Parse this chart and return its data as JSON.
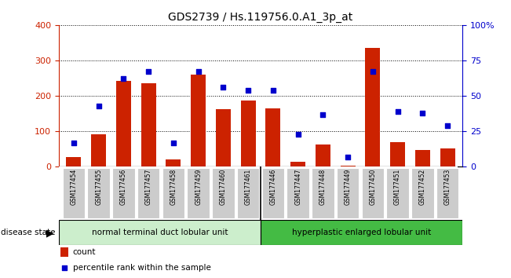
{
  "title": "GDS2739 / Hs.119756.0.A1_3p_at",
  "samples": [
    "GSM177454",
    "GSM177455",
    "GSM177456",
    "GSM177457",
    "GSM177458",
    "GSM177459",
    "GSM177460",
    "GSM177461",
    "GSM177446",
    "GSM177447",
    "GSM177448",
    "GSM177449",
    "GSM177450",
    "GSM177451",
    "GSM177452",
    "GSM177453"
  ],
  "counts": [
    28,
    92,
    242,
    235,
    20,
    260,
    163,
    187,
    165,
    15,
    62,
    3,
    335,
    70,
    48,
    52
  ],
  "percentiles": [
    17,
    43,
    62,
    67,
    17,
    67,
    56,
    54,
    54,
    23,
    37,
    7,
    67,
    39,
    38,
    29
  ],
  "group1_label": "normal terminal duct lobular unit",
  "group2_label": "hyperplastic enlarged lobular unit",
  "bar_color": "#cc2200",
  "dot_color": "#0000cc",
  "group1_bg": "#cceecc",
  "group2_bg": "#44bb44",
  "tick_bg": "#cccccc",
  "ylim_left": [
    0,
    400
  ],
  "ylim_right": [
    0,
    100
  ],
  "yticks_left": [
    0,
    100,
    200,
    300,
    400
  ],
  "yticks_right": [
    0,
    25,
    50,
    75,
    100
  ],
  "disease_state_label": "disease state",
  "legend_count": "count",
  "legend_pct": "percentile rank within the sample"
}
